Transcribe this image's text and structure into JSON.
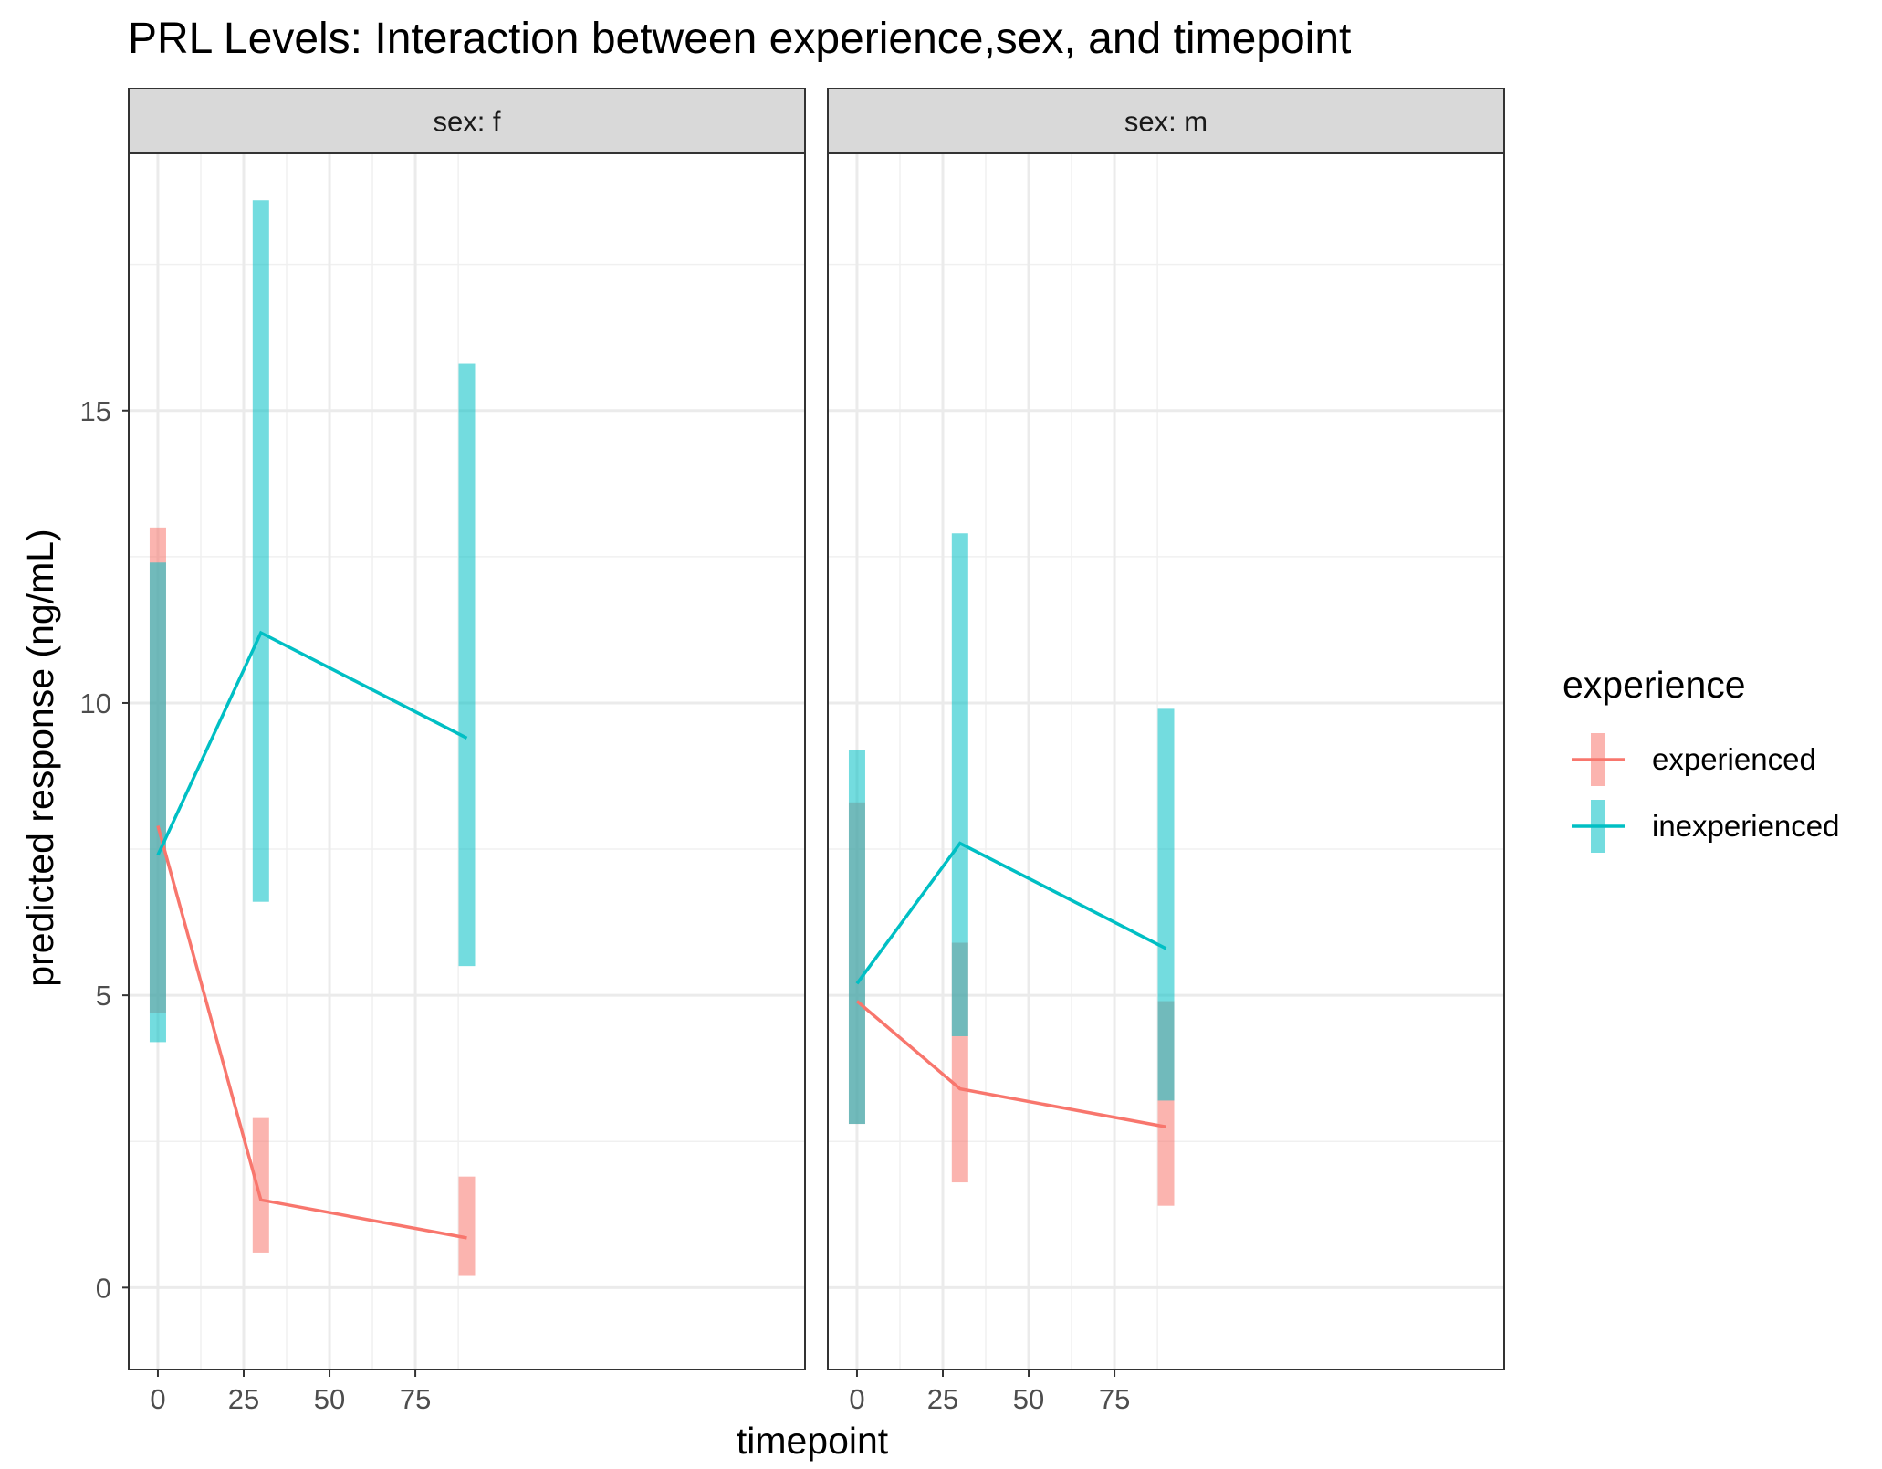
{
  "chart_data": {
    "type": "line",
    "title": "PRL Levels: Interaction between experience,sex, and timepoint",
    "xlabel": "timepoint",
    "ylabel": "predicted response (ng/mL)",
    "xlim": [
      -8.5,
      188.5
    ],
    "ylim": [
      -1.4,
      19.4
    ],
    "x_ticks": [
      0,
      25,
      50,
      75
    ],
    "x_tick_labels": [
      "0",
      "25",
      "50",
      "75"
    ],
    "y_ticks": [
      0,
      5,
      10,
      15
    ],
    "y_tick_labels": [
      "0",
      "5",
      "10",
      "15"
    ],
    "grid": true,
    "legend": {
      "title": "experience",
      "placement": "right",
      "entries": [
        "experienced",
        "inexperienced"
      ]
    },
    "colors": {
      "experienced": "#F8766D",
      "inexperienced": "#00BFC4"
    },
    "error_bars": "vertical ranges around each point",
    "panels": [
      {
        "strip": "sex: f",
        "series": [
          {
            "name": "experienced",
            "x": [
              0,
              30,
              90
            ],
            "values": [
              7.9,
              1.5,
              0.85
            ],
            "lower": [
              4.7,
              0.6,
              0.2
            ],
            "upper": [
              13.0,
              2.9,
              1.9
            ]
          },
          {
            "name": "inexperienced",
            "x": [
              0,
              30,
              90
            ],
            "values": [
              7.4,
              11.2,
              9.4
            ],
            "lower": [
              4.2,
              6.6,
              5.5
            ],
            "upper": [
              12.4,
              18.6,
              15.8
            ]
          }
        ]
      },
      {
        "strip": "sex: m",
        "series": [
          {
            "name": "experienced",
            "x": [
              0,
              30,
              90
            ],
            "values": [
              4.9,
              3.4,
              2.75
            ],
            "lower": [
              2.8,
              1.8,
              1.4
            ],
            "upper": [
              8.3,
              5.9,
              4.9
            ]
          },
          {
            "name": "inexperienced",
            "x": [
              0,
              30,
              90
            ],
            "values": [
              5.2,
              7.6,
              5.8
            ],
            "lower": [
              2.8,
              4.3,
              3.2
            ],
            "upper": [
              9.2,
              12.9,
              9.9
            ]
          }
        ]
      }
    ]
  }
}
